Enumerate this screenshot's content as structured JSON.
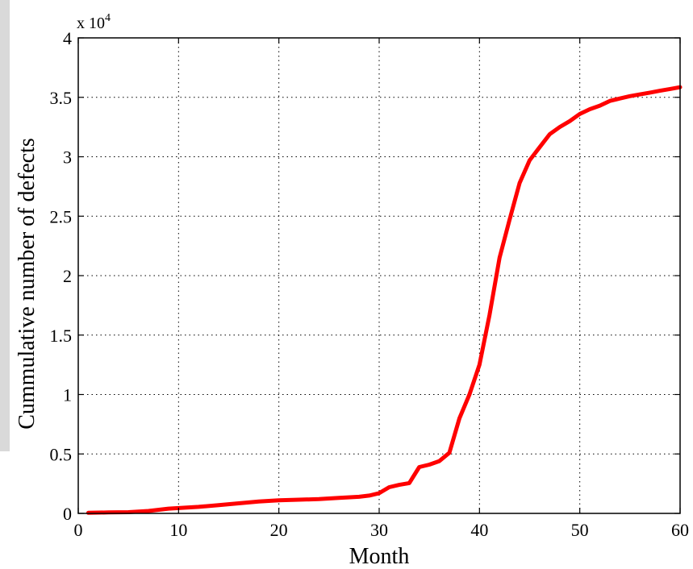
{
  "chart_data": {
    "type": "line",
    "xlabel": "Month",
    "ylabel": "Cummulative number of defects",
    "exponent_label": "x 10",
    "exponent_power": "4",
    "xlim": [
      0,
      60
    ],
    "ylim": [
      0,
      40000
    ],
    "xticks": [
      0,
      10,
      20,
      30,
      40,
      50,
      60
    ],
    "yticks": [
      0,
      5000,
      10000,
      15000,
      20000,
      25000,
      30000,
      35000,
      40000
    ],
    "ytick_labels": [
      "0",
      "0.5",
      "1",
      "1.5",
      "2",
      "2.5",
      "3",
      "3.5",
      "4"
    ],
    "xtick_labels": [
      "0",
      "10",
      "20",
      "30",
      "40",
      "50",
      "60"
    ],
    "grid": true,
    "line_color": "#ff0000",
    "series": [
      {
        "x": [
          1,
          3,
          5,
          7,
          9,
          11,
          12,
          14,
          16,
          18,
          20,
          22,
          24,
          26,
          28,
          29,
          30,
          31,
          32,
          33,
          34,
          35,
          36,
          37,
          38,
          39,
          40,
          41,
          42,
          43,
          44,
          45,
          46,
          47,
          48,
          49,
          50,
          51,
          52,
          53,
          54,
          55,
          56,
          57,
          58,
          59,
          60
        ],
        "values": [
          50,
          80,
          100,
          200,
          400,
          500,
          550,
          700,
          850,
          1000,
          1100,
          1150,
          1200,
          1300,
          1400,
          1500,
          1700,
          2200,
          2400,
          2550,
          3900,
          4100,
          4400,
          5100,
          8000,
          10000,
          12500,
          16700,
          21500,
          24700,
          27800,
          29700,
          30800,
          31900,
          32500,
          33000,
          33600,
          34000,
          34300,
          34700,
          34900,
          35100,
          35250,
          35400,
          35550,
          35700,
          35850
        ]
      }
    ]
  }
}
